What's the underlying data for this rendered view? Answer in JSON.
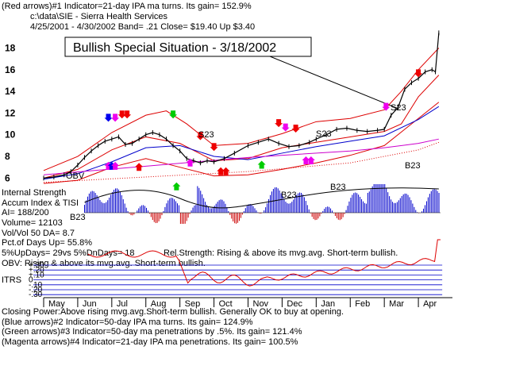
{
  "header": {
    "line1": "(Red arrows)#1 Indicator=21-day IPA ma turns. Its gain= 152.9%",
    "line2": "c:\\data\\SIE  -  Sierra Health Services",
    "line3": "4/25/2001 - 4/30/2002  Band= .21   Close= $19.40   Up $3.40"
  },
  "callout": "Bullish Special Situation - 3/18/2002",
  "indicators": {
    "internal_strength": "Internal Strength",
    "accum": "Accum Index & TISI",
    "ai": "AI= 188/200",
    "volume": "Volume= 12103",
    "volvol": "Vol/Vol 50 DA= 8.7",
    "pct_up": "Pct.of Days Up= 55.8%",
    "updays": "5%UpDays= 29vs 5%DnDays= 18",
    "rel_strength": "Rel.Strength: Rising & above its mvg.avg.  Short-term bullish.",
    "obv": "OBV: Rising & above its mvg.avg.  Short-term bullish.",
    "itrs": "ITRS"
  },
  "footer": {
    "line1": "Closing Power:Above rising mvg.avg.Short-term bullish.  Generally OK to buy at opening.",
    "line2": "(Blue arrows)#2 Indicator=50-day IPA ma turns.  Its gain= 124.9%",
    "line3": "(Green arrows)#3 Indicator=50-day ma penetrations by .5%.  Its gain= 121.4%",
    "line4": "(Magenta arrows)#4 Indicator=21-day IPA ma penetrations.  Its gain= 100.5%"
  },
  "markers": {
    "s23": "S23",
    "b23": "B23",
    "obv": "OBV"
  },
  "chart_data": {
    "type": "line",
    "title": "",
    "xlabel": "",
    "ylabel": "",
    "months": [
      "May",
      "Jun",
      "Jul",
      "Aug",
      "Sep",
      "Oct",
      "Nov",
      "Dec",
      "Jan",
      "Feb",
      "Mar",
      "Apr"
    ],
    "price_ticks": [
      6,
      8,
      10,
      12,
      14,
      16,
      18
    ],
    "ylim": [
      5,
      19.5
    ],
    "itrs_ticks": [
      "+.30",
      "+.20",
      "+.10",
      "0",
      "-.10",
      "-.20",
      "-.30"
    ],
    "series": [
      {
        "role": "close",
        "color": "#000000",
        "x": [
          0,
          0.3,
          0.6,
          0.8,
          1.0,
          1.2,
          1.4,
          1.6,
          1.8,
          2.0,
          2.2,
          2.4,
          2.6,
          2.8,
          3.0,
          3.2,
          3.4,
          3.6,
          3.8,
          4.0,
          4.2,
          4.4,
          4.6,
          4.8,
          5.0,
          5.3,
          5.6,
          6.0,
          6.3,
          6.6,
          6.9,
          7.2,
          7.5,
          7.8,
          8.0,
          8.3,
          8.6,
          8.9,
          9.2,
          9.5,
          9.8,
          10.0,
          10.2,
          10.4,
          10.6,
          10.8,
          11.0,
          11.2,
          11.4,
          11.5,
          11.6
        ],
        "values": [
          6.0,
          6.1,
          6.3,
          6.6,
          7.2,
          7.9,
          8.5,
          9.0,
          9.4,
          9.6,
          9.8,
          9.1,
          9.2,
          9.6,
          10.0,
          10.2,
          10.0,
          9.6,
          9.0,
          8.5,
          7.8,
          7.6,
          7.4,
          7.6,
          7.5,
          7.8,
          8.3,
          9.0,
          9.3,
          9.6,
          9.2,
          8.9,
          9.0,
          9.3,
          9.6,
          10.0,
          10.5,
          10.6,
          10.4,
          10.3,
          10.4,
          10.5,
          11.8,
          12.5,
          14.2,
          14.8,
          15.2,
          15.8,
          16.0,
          15.8,
          19.4
        ]
      },
      {
        "role": "upper-band",
        "color": "#dd0000",
        "x": [
          0,
          1,
          2,
          3,
          3.6,
          4.2,
          5,
          6,
          7,
          8,
          9,
          10,
          10.5,
          11,
          11.6
        ],
        "values": [
          6.7,
          8.0,
          10.2,
          11.8,
          12.2,
          11.0,
          9.0,
          9.2,
          10.1,
          11.2,
          11.5,
          12.3,
          14.0,
          16.0,
          18.0
        ]
      },
      {
        "role": "lower-band",
        "color": "#dd0000",
        "x": [
          0,
          1,
          2,
          3,
          4,
          5,
          6,
          7,
          8,
          9,
          10,
          11,
          11.6
        ],
        "values": [
          5.5,
          5.8,
          7.0,
          7.8,
          7.0,
          6.2,
          6.3,
          6.8,
          7.4,
          8.1,
          9.0,
          11.5,
          13.0
        ]
      },
      {
        "role": "ma-21",
        "color": "#dd0000",
        "x": [
          0,
          1,
          2,
          3,
          4,
          5,
          6,
          7,
          8,
          9,
          10,
          10.5,
          11,
          11.6
        ],
        "values": [
          6.0,
          6.8,
          8.6,
          9.8,
          9.2,
          7.6,
          7.8,
          8.8,
          9.3,
          9.8,
          10.3,
          11.0,
          13.5,
          15.5
        ]
      },
      {
        "role": "ma-50",
        "color": "#0000cc",
        "x": [
          0,
          1,
          2,
          3,
          4,
          5,
          6,
          7,
          8,
          9,
          10,
          11,
          11.6
        ],
        "values": [
          5.9,
          6.4,
          7.5,
          8.8,
          9.0,
          8.0,
          7.7,
          8.3,
          8.9,
          9.4,
          9.9,
          11.4,
          12.6
        ]
      },
      {
        "role": "ma-200",
        "color": "#cc00cc",
        "x": [
          0,
          3,
          6,
          9,
          10,
          11,
          11.6
        ],
        "values": [
          6.3,
          7.1,
          7.9,
          8.5,
          8.8,
          9.2,
          9.6
        ]
      }
    ]
  },
  "colors": {
    "band": "#dd0000",
    "ma50": "#0000cc",
    "ma200": "#cc00cc",
    "accum_bar": "#0000cc",
    "arrow_red": "#ee0000",
    "arrow_blue": "#0000ee",
    "arrow_green": "#00cc00",
    "arrow_magenta": "#ee00ee",
    "itrs_line": "#dd0000",
    "itrs_grid": "#0000cc"
  }
}
